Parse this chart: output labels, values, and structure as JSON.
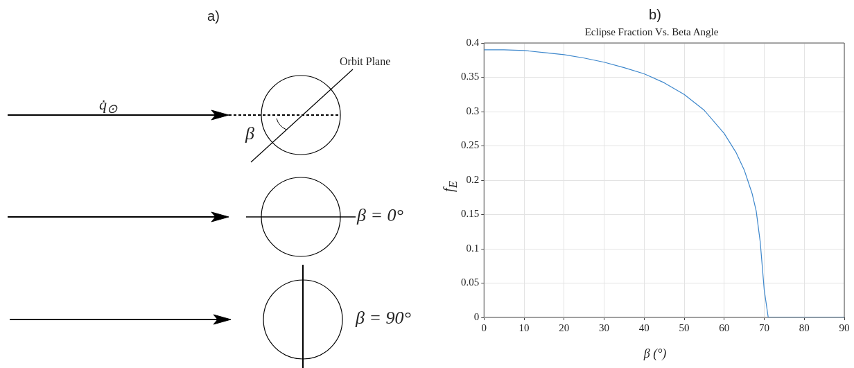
{
  "chart_data": [
    {
      "type": "other",
      "title": "a)",
      "annotations": [
        "Orbit Plane",
        "q̇$_{⊙}$",
        "β",
        "β = 0°",
        "β = 90°"
      ]
    },
    {
      "type": "line",
      "title": "Eclipse Fraction Vs. Beta Angle",
      "annotations": [
        "b)"
      ],
      "xlabel": "β (°)",
      "ylabel": "f$_{E}$",
      "x": [
        0,
        5,
        10,
        15,
        20,
        25,
        30,
        35,
        40,
        45,
        50,
        55,
        60,
        63,
        65,
        67,
        68,
        69,
        70,
        71,
        90
      ],
      "series": [
        {
          "color": "#3d87cc",
          "values": [
            0.39,
            0.39,
            0.389,
            0.386,
            0.383,
            0.378,
            0.372,
            0.364,
            0.355,
            0.342,
            0.325,
            0.302,
            0.268,
            0.24,
            0.215,
            0.18,
            0.155,
            0.11,
            0.04,
            0,
            0
          ]
        }
      ],
      "xlim": [
        0,
        90
      ],
      "xticks": [
        0,
        10,
        20,
        30,
        40,
        50,
        60,
        70,
        80,
        90
      ],
      "ylim": [
        0,
        0.4
      ],
      "yticks": [
        0,
        0.05,
        0.1,
        0.15,
        0.2,
        0.25,
        0.3,
        0.35,
        0.4
      ],
      "grid": true,
      "legend": false,
      "marker": "none",
      "line_style": "solid"
    }
  ]
}
